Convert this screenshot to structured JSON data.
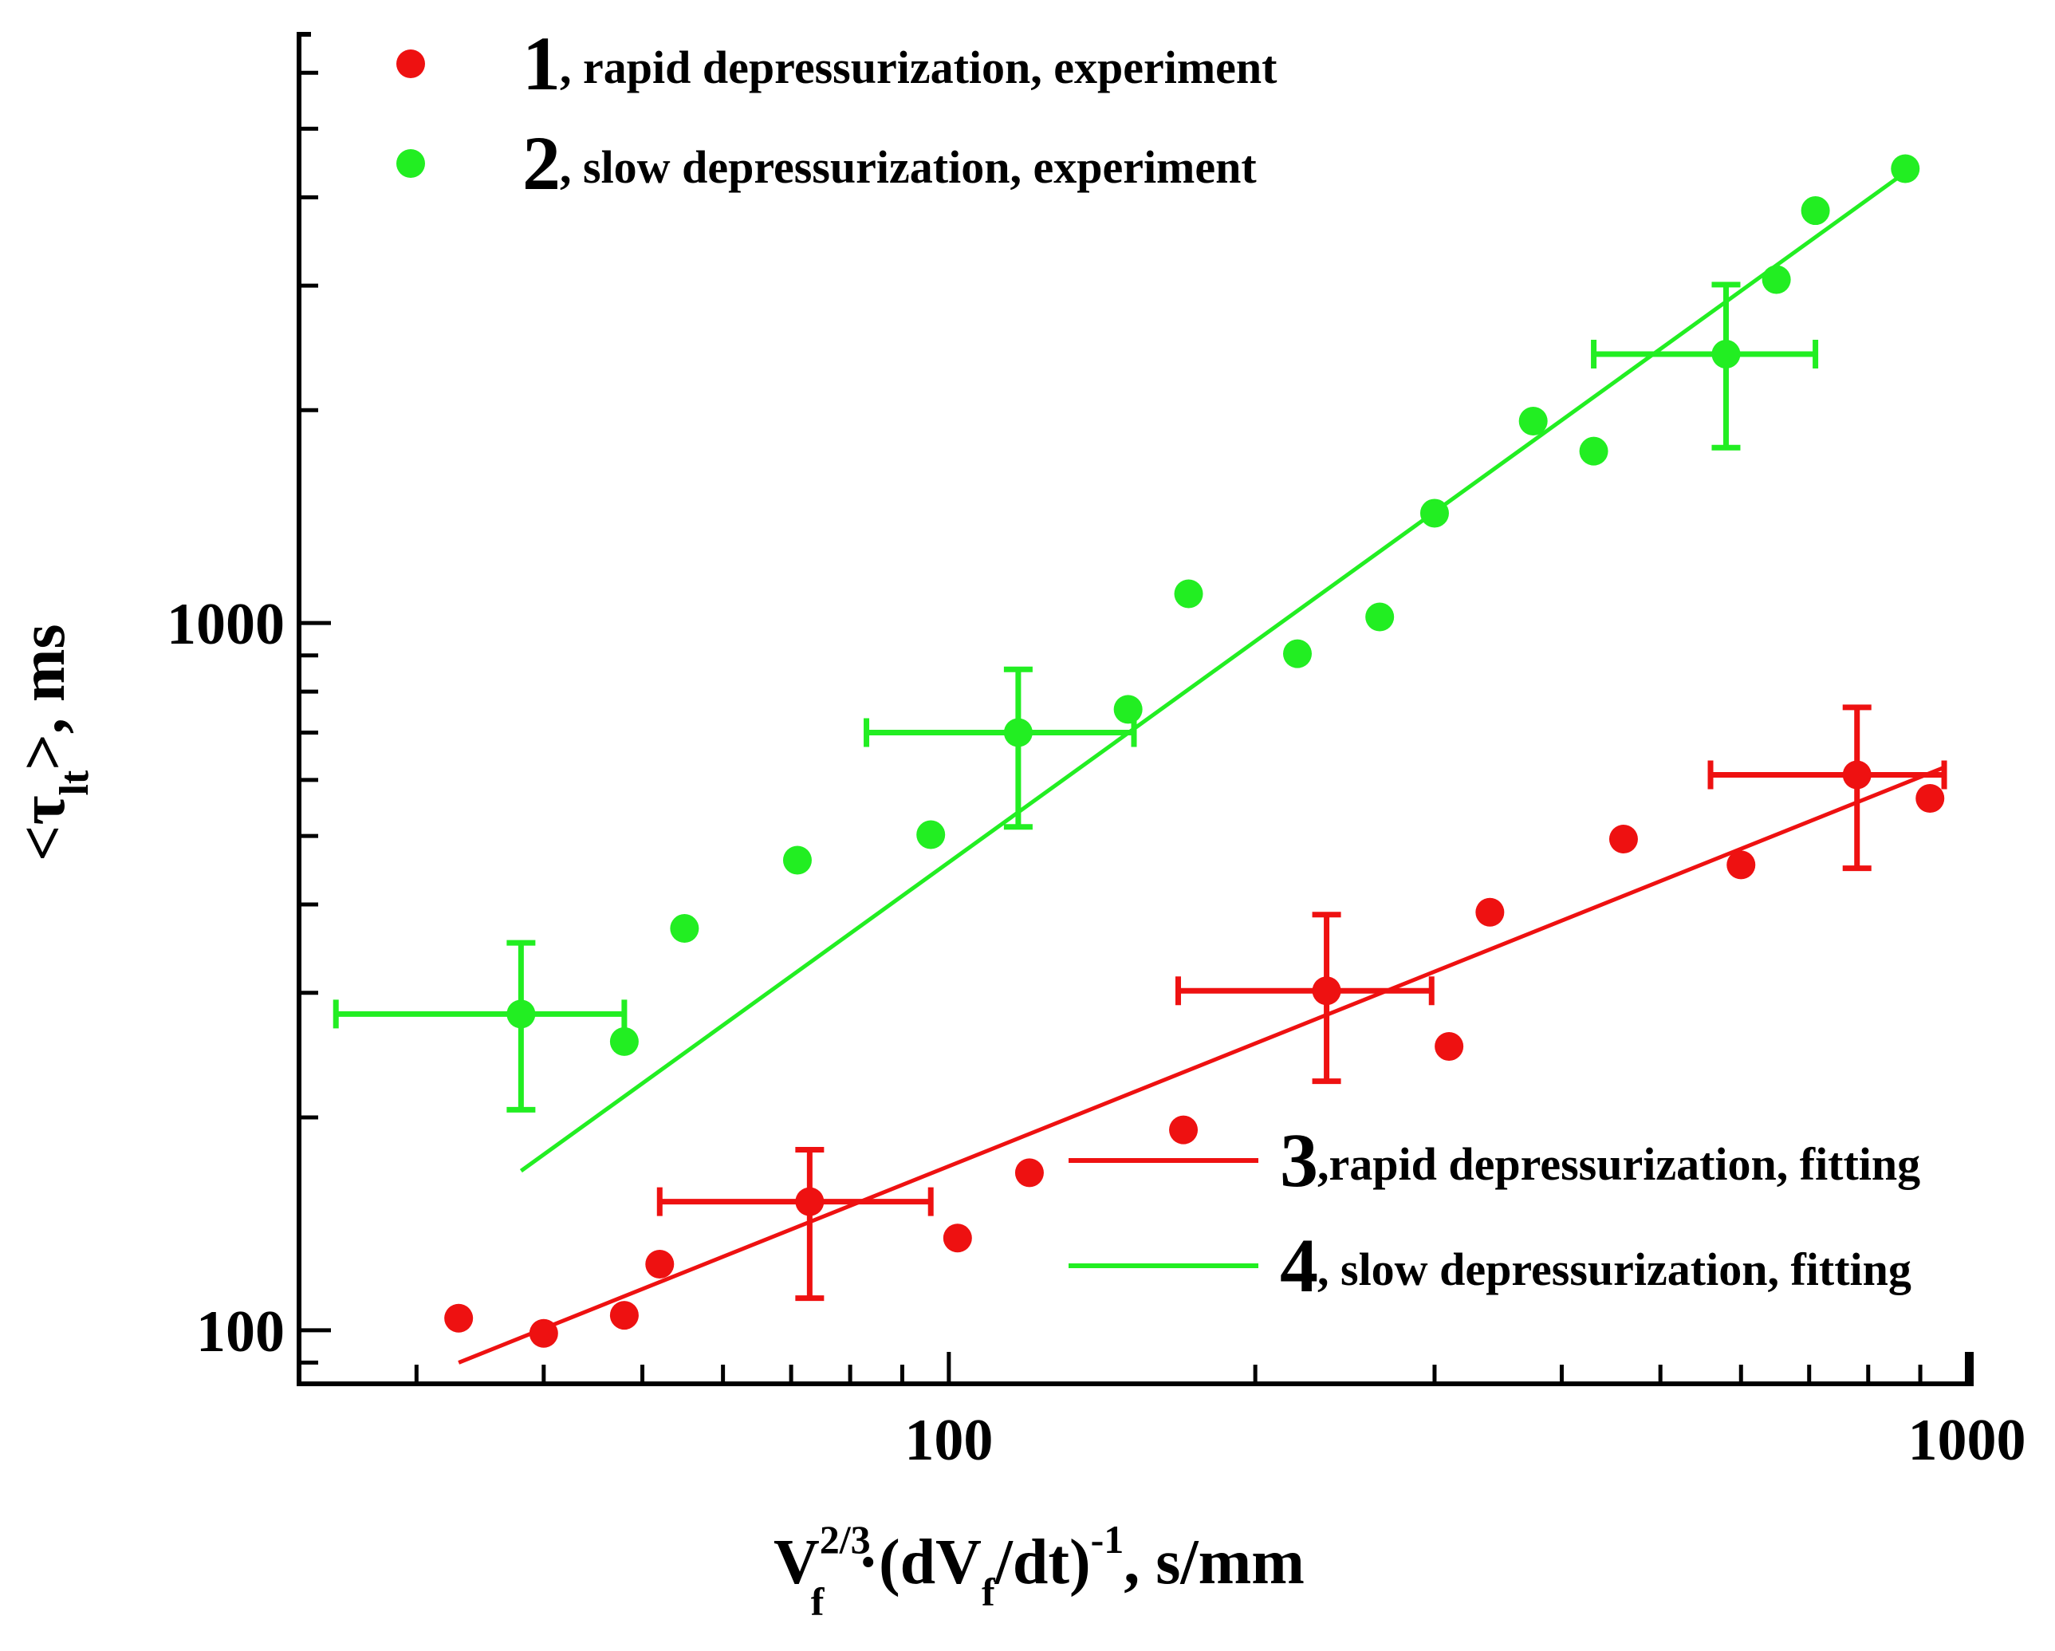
{
  "chart_data": {
    "type": "scatter",
    "xscale": "log",
    "yscale": "log",
    "xlim": [
      23,
      1010
    ],
    "ylim": [
      84,
      6800
    ],
    "xlabel": {
      "main": "V",
      "sub": "f",
      "sup": "2/3",
      "mid": "·(dV",
      "sub2": "f",
      "mid2": "/dt)",
      "sup2": "-1",
      "tail": ", s/mm"
    },
    "ylabel": {
      "pre": "<τ",
      "sub": "lt",
      "post": ">, ms"
    },
    "xticks": [
      {
        "value": 100,
        "label": "100"
      },
      {
        "value": 1000,
        "label": "1000"
      }
    ],
    "yticks": [
      {
        "value": 100,
        "label": "100"
      },
      {
        "value": 1000,
        "label": "1000"
      }
    ],
    "colors": {
      "rapid": "#ee1111",
      "slow": "#22ee22"
    },
    "series": [
      {
        "name": "rapid depressurization, experiment",
        "number": "1",
        "color": "#ee1111",
        "points": [
          {
            "x": 33,
            "y": 104
          },
          {
            "x": 40,
            "y": 99
          },
          {
            "x": 48,
            "y": 105
          },
          {
            "x": 52,
            "y": 124
          },
          {
            "x": 73,
            "y": 152
          },
          {
            "x": 102,
            "y": 135
          },
          {
            "x": 120,
            "y": 167
          },
          {
            "x": 170,
            "y": 192
          },
          {
            "x": 235,
            "y": 302
          },
          {
            "x": 310,
            "y": 252
          },
          {
            "x": 340,
            "y": 390
          },
          {
            "x": 460,
            "y": 495
          },
          {
            "x": 600,
            "y": 455
          },
          {
            "x": 780,
            "y": 610
          },
          {
            "x": 920,
            "y": 565
          }
        ]
      },
      {
        "name": "slow depressurization, experiment",
        "number": "2",
        "color": "#22ee22",
        "points": [
          {
            "x": 38,
            "y": 280
          },
          {
            "x": 48,
            "y": 256
          },
          {
            "x": 55,
            "y": 370
          },
          {
            "x": 71,
            "y": 462
          },
          {
            "x": 96,
            "y": 502
          },
          {
            "x": 117,
            "y": 700
          },
          {
            "x": 150,
            "y": 755
          },
          {
            "x": 172,
            "y": 1100
          },
          {
            "x": 220,
            "y": 905
          },
          {
            "x": 265,
            "y": 1020
          },
          {
            "x": 300,
            "y": 1430
          },
          {
            "x": 375,
            "y": 1930
          },
          {
            "x": 430,
            "y": 1750
          },
          {
            "x": 580,
            "y": 2400
          },
          {
            "x": 650,
            "y": 3060
          },
          {
            "x": 710,
            "y": 3830
          },
          {
            "x": 870,
            "y": 4390
          }
        ]
      },
      {
        "name": "rapid depressurization, fitting",
        "number": "3",
        "type": "line",
        "color": "#ee1111",
        "x": [
          33,
          950
        ],
        "y": [
          90,
          625
        ]
      },
      {
        "name": "slow depressurization, fitting",
        "number": "4",
        "type": "line",
        "color": "#22ee22",
        "x": [
          38,
          880
        ],
        "y": [
          168,
          4390
        ]
      }
    ],
    "error_bars": [
      {
        "series": "rapid",
        "x": 73,
        "y": 152,
        "xmin": 52,
        "xmax": 96,
        "ymin": 111,
        "ymax": 180
      },
      {
        "series": "rapid",
        "x": 235,
        "y": 302,
        "xmin": 168,
        "xmax": 298,
        "ymin": 225,
        "ymax": 387
      },
      {
        "series": "rapid",
        "x": 780,
        "y": 610,
        "xmin": 560,
        "xmax": 950,
        "ymin": 450,
        "ymax": 760
      },
      {
        "series": "slow",
        "x": 38,
        "y": 280,
        "xmin": 25,
        "xmax": 48,
        "ymin": 205,
        "ymax": 353
      },
      {
        "series": "slow",
        "x": 117,
        "y": 700,
        "xmin": 83,
        "xmax": 152,
        "ymin": 515,
        "ymax": 860
      },
      {
        "series": "slow",
        "x": 580,
        "y": 2400,
        "xmin": 430,
        "xmax": 710,
        "ymin": 1770,
        "ymax": 3010
      }
    ],
    "legend_top": [
      {
        "number": "1",
        "label": ", rapid depressurization, experiment",
        "color": "#ee1111"
      },
      {
        "number": "2",
        "label": ", slow depressurization, experiment",
        "color": "#22ee22"
      }
    ],
    "legend_bottom": [
      {
        "number": "3",
        "label": ",rapid depressurization, fitting",
        "color": "#ee1111"
      },
      {
        "number": "4",
        "label": ", slow depressurization, fitting",
        "color": "#22ee22"
      }
    ],
    "legend_placement": [
      "top-left",
      "bottom-right"
    ]
  }
}
